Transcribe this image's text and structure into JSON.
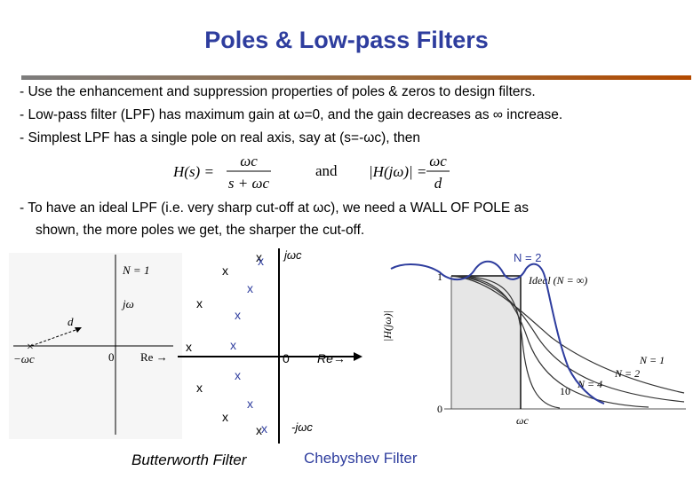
{
  "slide": {
    "title": "Poles & Low-pass Filters",
    "bullets": [
      "- Use the enhancement and suppression properties of poles & zeros to design filters.",
      "- Low-pass filter (LPF) has maximum gain at ω=0, and the gain decreases as ∞ increase.",
      "- Simplest LPF has a single pole on real axis, say at (s=-ωc), then"
    ],
    "bullet4_line1": "- To have an ideal LPF (i.e. very sharp cut-off at ωc), we need a WALL OF POLE as",
    "bullet4_line2": "shown, the more poles we get, the sharper the cut-off."
  },
  "formula": {
    "lhs": "H(s) =",
    "num": "ωc",
    "den": "s + ωc",
    "and": "and",
    "lhs2": "|H(jω)| =",
    "num2": "ωc",
    "den2": "d"
  },
  "splane": {
    "n_label": "N = 1",
    "jw": "jω",
    "d": "d",
    "re": "Re →",
    "zero": "0",
    "minus_wc": "−ωc"
  },
  "poles": {
    "jwc": "jωc",
    "neg_jwc": "-jωc",
    "zero": "0",
    "re": "Re→"
  },
  "butterworth_caption": "Butterworth Filter",
  "chebyshev_caption": "Chebyshev Filter",
  "response": {
    "n2_label": "N = 2",
    "ideal": "Ideal (N = ∞)",
    "ylabel": "|H(jω)|",
    "one": "1",
    "zero": "0",
    "wc": "ωc",
    "curves": [
      "N = 1",
      "N = 2",
      "N = 4",
      "10"
    ]
  },
  "colors": {
    "title": "#2e3d9e",
    "chebyshev": "#2e3d9e"
  }
}
